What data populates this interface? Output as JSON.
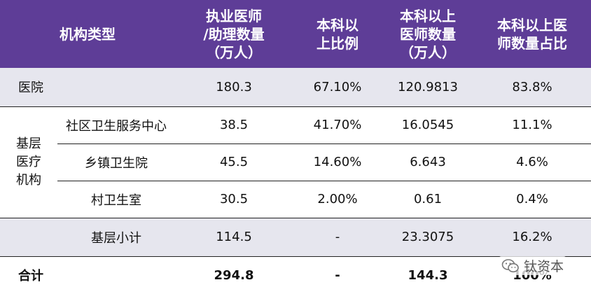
{
  "header": {
    "col1": "机构类型",
    "col2_lines": [
      "执业医师",
      "/助理数量",
      "（万人）"
    ],
    "col3_lines": [
      "本科以",
      "上比例"
    ],
    "col4_lines": [
      "本科以上",
      "医师数量",
      "（万人）"
    ],
    "col5_lines": [
      "本科以上医",
      "师数量占比"
    ]
  },
  "rows": {
    "hospital": {
      "label": "医院",
      "count": "180.3",
      "ratio": "67.10%",
      "bachelor": "120.9813",
      "share": "83.8%"
    },
    "group_label_lines": [
      "基层",
      "医疗",
      "机构"
    ],
    "community": {
      "label": "社区卫生服务中心",
      "count": "38.5",
      "ratio": "41.70%",
      "bachelor": "16.0545",
      "share": "11.1%"
    },
    "township": {
      "label": "乡镇卫生院",
      "count": "45.5",
      "ratio": "14.60%",
      "bachelor": "6.643",
      "share": "4.6%"
    },
    "village": {
      "label": "村卫生室",
      "count": "30.5",
      "ratio": "2.00%",
      "bachelor": "0.61",
      "share": "0.4%"
    },
    "subtotal": {
      "label": "基层小计",
      "count": "114.5",
      "ratio": "-",
      "bachelor": "23.3075",
      "share": "16.2%"
    },
    "total": {
      "label": "合计",
      "count": "294.8",
      "ratio": "-",
      "bachelor": "144.3",
      "share": "100%"
    }
  },
  "watermark": {
    "text": "钛资本",
    "icon": "wechat-icon"
  }
}
